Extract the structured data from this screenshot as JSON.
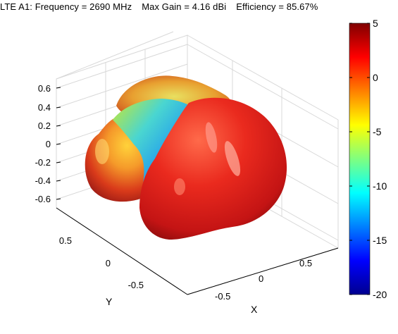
{
  "header": {
    "title_parts": [
      "LTE A1: Frequency = 2690 MHz",
      "Max Gain = 4.16 dBi",
      "Efficiency = 85.67%"
    ]
  },
  "chart_data": {
    "type": "surface-3d",
    "title": "LTE A1: Frequency = 2690 MHz   Max Gain = 4.16 dBi   Efficiency = 85.67%",
    "xlabel": "X",
    "ylabel": "Y",
    "zlabel": "",
    "x_ticks": [
      "-0.5",
      "0",
      "0.5"
    ],
    "y_ticks": [
      "0.5",
      "0",
      "-0.5"
    ],
    "z_ticks": [
      "0.6",
      "0.4",
      "0.2",
      "0",
      "-0.2",
      "-0.4",
      "-0.6"
    ],
    "zlim": [
      -0.7,
      0.7
    ],
    "grid": true,
    "colorbar": {
      "range": [
        -20,
        5
      ],
      "ticks": [
        "5",
        "0",
        "-5",
        "-10",
        "-15",
        "-20"
      ],
      "colormap": "jet",
      "colors": [
        "#00008f",
        "#0000ff",
        "#00ffff",
        "#ffff00",
        "#ff0000",
        "#800000"
      ]
    },
    "max_gain_dBi": 4.16,
    "frequency_MHz": 2690,
    "efficiency_percent": 85.67
  }
}
